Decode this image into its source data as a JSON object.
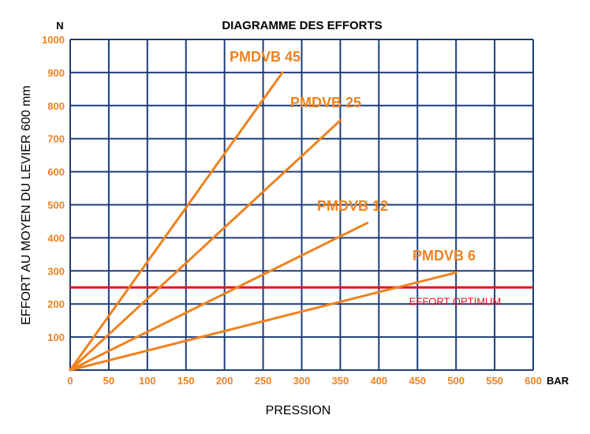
{
  "colors": {
    "grid": "#1f3d78",
    "series": "#f0821e",
    "reference": "#e4141e",
    "ticks": "#f0821e"
  },
  "chart_data": {
    "type": "line",
    "title": "DIAGRAMME DES EFFORTS",
    "xlabel": "PRESSION",
    "ylabel": "EFFORT AU MOYEN DU LEVIER 600 mm",
    "x_unit": "BAR",
    "y_unit": "N",
    "xlim": [
      0,
      600
    ],
    "ylim": [
      0,
      1000
    ],
    "xticks": [
      "0",
      "50",
      "100",
      "150",
      "200",
      "250",
      "300",
      "350",
      "400",
      "450",
      "500",
      "550",
      "600"
    ],
    "yticks": [
      "100",
      "200",
      "300",
      "400",
      "500",
      "600",
      "700",
      "800",
      "900",
      "1000"
    ],
    "grid": true,
    "series": [
      {
        "name": "PMDVB 45",
        "x": [
          0,
          275
        ],
        "y": [
          0,
          900
        ]
      },
      {
        "name": "PMDVB 25",
        "x": [
          0,
          350
        ],
        "y": [
          0,
          755
        ]
      },
      {
        "name": "PMDVB 12",
        "x": [
          0,
          385
        ],
        "y": [
          0,
          445
        ]
      },
      {
        "name": "PMDVB 6",
        "x": [
          0,
          500
        ],
        "y": [
          0,
          295
        ]
      }
    ],
    "reference_lines": [
      {
        "name": "EFFORT OPTIMUM",
        "y": 250
      }
    ]
  }
}
